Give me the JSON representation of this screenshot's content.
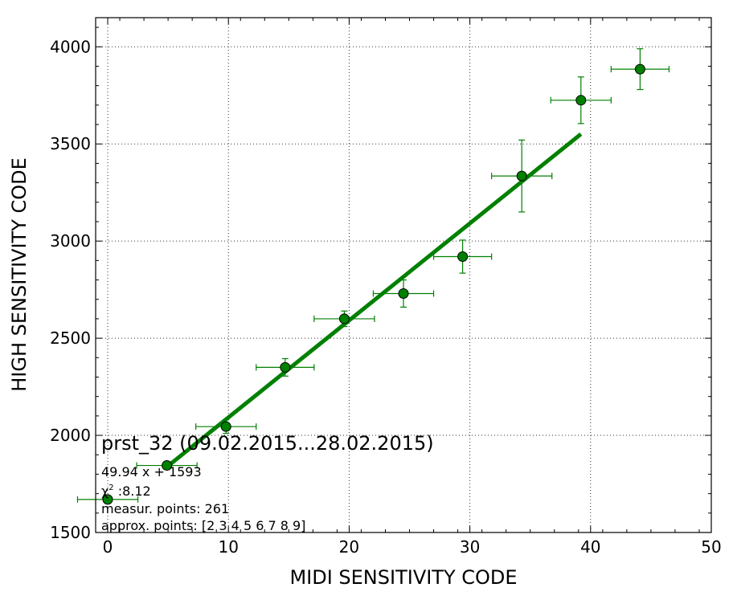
{
  "chart_data": {
    "type": "scatter",
    "xlabel": "MIDI SENSITIVITY CODE",
    "ylabel": "HIGH SENSITIVITY CODE",
    "xlim": [
      -1,
      50
    ],
    "ylim": [
      1500,
      4150
    ],
    "xticks": [
      0,
      10,
      20,
      30,
      40,
      50
    ],
    "yticks": [
      1500,
      2000,
      2500,
      3000,
      3500,
      4000
    ],
    "grid": true,
    "colors": {
      "points": "#008000",
      "fit_line": "#008000",
      "errorbars": "#008000"
    },
    "points": [
      {
        "x": 0,
        "y": 1670,
        "xerr": 2.5,
        "yerr": 10
      },
      {
        "x": 4.9,
        "y": 1845,
        "xerr": 2.5,
        "yerr": 20
      },
      {
        "x": 9.8,
        "y": 2045,
        "xerr": 2.5,
        "yerr": 35
      },
      {
        "x": 14.7,
        "y": 2350,
        "xerr": 2.4,
        "yerr": 45
      },
      {
        "x": 19.6,
        "y": 2600,
        "xerr": 2.5,
        "yerr": 40
      },
      {
        "x": 24.5,
        "y": 2730,
        "xerr": 2.5,
        "yerr": 70
      },
      {
        "x": 29.4,
        "y": 2920,
        "xerr": 2.4,
        "yerr": 85
      },
      {
        "x": 34.3,
        "y": 3335,
        "xerr": 2.5,
        "yerr": 185
      },
      {
        "x": 39.2,
        "y": 3725,
        "xerr": 2.5,
        "yerr": 120
      },
      {
        "x": 44.1,
        "y": 3885,
        "xerr": 2.4,
        "yerr": 105
      }
    ],
    "fit_line": {
      "slope": 49.94,
      "intercept": 1593,
      "x_range": [
        4.9,
        39.2
      ]
    },
    "annotations": {
      "title": "prst_32 (09.02.2015...28.02.2015)",
      "equation": "49.94 x + 1593",
      "chi2_symbol": "χ",
      "chi2_sup": "2",
      "chi2_value": " :8.12",
      "measur_points": "measur. points: 261",
      "approx_points": "approx. points: [2 3 4 5 6 7 8 9]"
    }
  }
}
